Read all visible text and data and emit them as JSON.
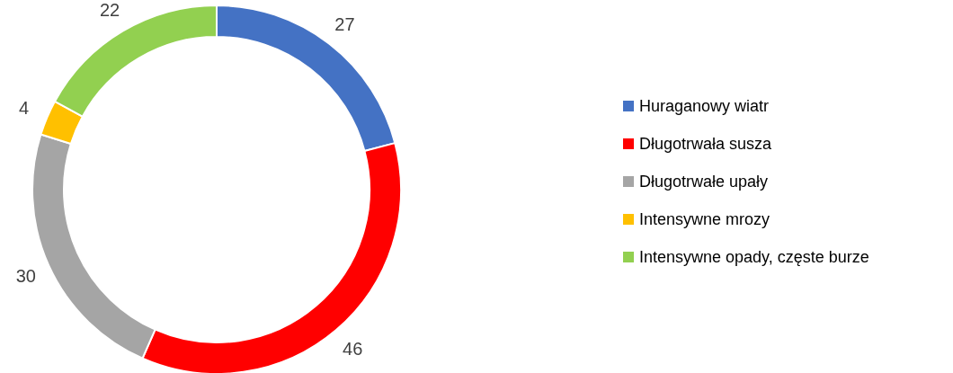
{
  "chart_data": {
    "type": "donut",
    "categories": [
      "Huraganowy wiatr",
      "Długotrwała susza",
      "Długotrwałe upały",
      "Intensywne mrozy",
      "Intensywne opady, częste burze"
    ],
    "values": [
      27,
      46,
      30,
      4,
      22
    ],
    "colors": [
      "#4472c4",
      "#ff0000",
      "#a5a5a5",
      "#ffc000",
      "#92d050"
    ],
    "data_labels": true,
    "legend": "right"
  }
}
